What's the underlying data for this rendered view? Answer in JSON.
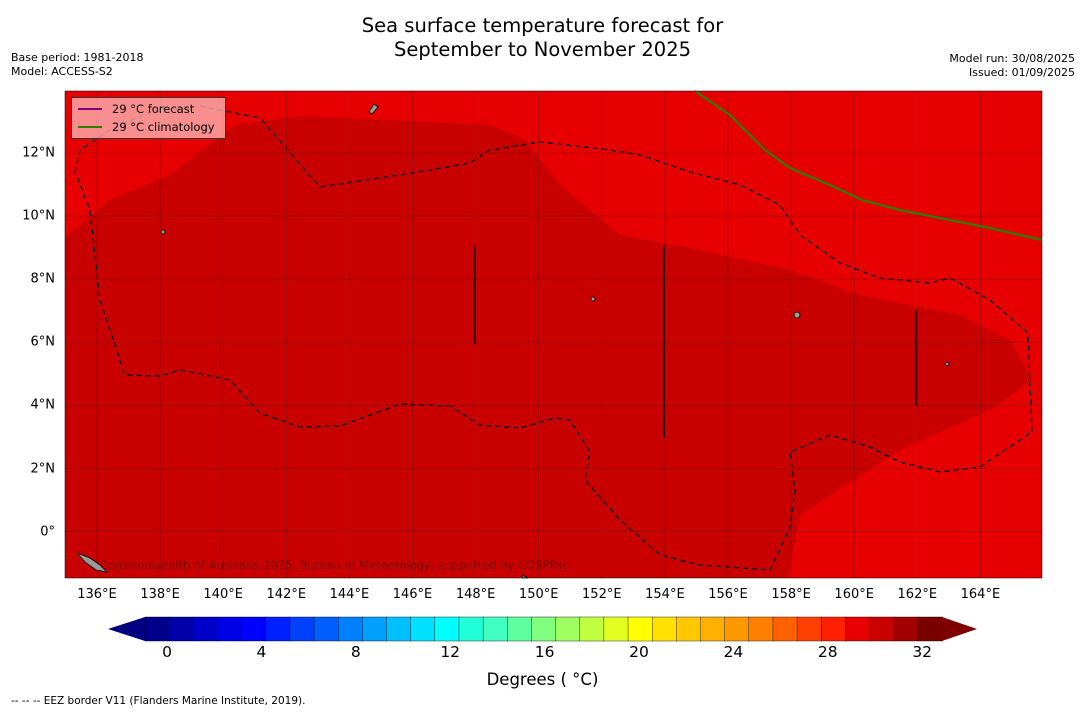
{
  "title_line1": "Sea surface temperature forecast for",
  "title_line2": "September to November 2025",
  "meta_left": {
    "base_period": "Base period: 1981-2018",
    "model": "Model: ACCESS-S2"
  },
  "meta_right": {
    "model_run": "Model run: 30/08/2025",
    "issued": "Issued: 01/09/2025"
  },
  "legend": {
    "forecast_label": "29 °C  forecast",
    "climatology_label": "29 °C  climatology",
    "forecast_color": "#800080",
    "climatology_color": "#2e7d00"
  },
  "x_ticks": [
    "136°E",
    "138°E",
    "140°E",
    "142°E",
    "144°E",
    "146°E",
    "148°E",
    "150°E",
    "152°E",
    "154°E",
    "156°E",
    "158°E",
    "160°E",
    "162°E",
    "164°E"
  ],
  "y_ticks": [
    "12°N",
    "10°N",
    "8°N",
    "6°N",
    "4°N",
    "2°N",
    "0°"
  ],
  "colorbar": {
    "ticks": [
      "0",
      "4",
      "8",
      "12",
      "16",
      "20",
      "24",
      "28",
      "32"
    ],
    "label": "Degrees ( °C)",
    "colors": [
      "#00008b",
      "#0000a8",
      "#0000c8",
      "#0000e6",
      "#0000ff",
      "#0020ff",
      "#0040ff",
      "#0060ff",
      "#0080ff",
      "#00a0ff",
      "#00c0ff",
      "#00e0ff",
      "#00ffff",
      "#20ffd8",
      "#40ffc0",
      "#60ffa0",
      "#80ff80",
      "#a0ff60",
      "#c0ff40",
      "#e0ff20",
      "#ffff00",
      "#ffe000",
      "#ffc800",
      "#ffb000",
      "#ff9800",
      "#ff8000",
      "#ff6000",
      "#ff4000",
      "#ff2000",
      "#e60000",
      "#c80000",
      "#a00000",
      "#7a0000"
    ],
    "below_color": "#000080",
    "above_color": "#800000"
  },
  "map_colors": {
    "sea_main": "#e60000",
    "sea_warm": "#c80000",
    "grid": "#5a0000",
    "land": "#9a9a9a"
  },
  "copyright": "Commonwealth of Australia 2025, Bureau of Meteorology, supported by COSPPac",
  "footer": "--  --  -- EEZ border V11 (Flanders Marine Institute, 2019)."
}
